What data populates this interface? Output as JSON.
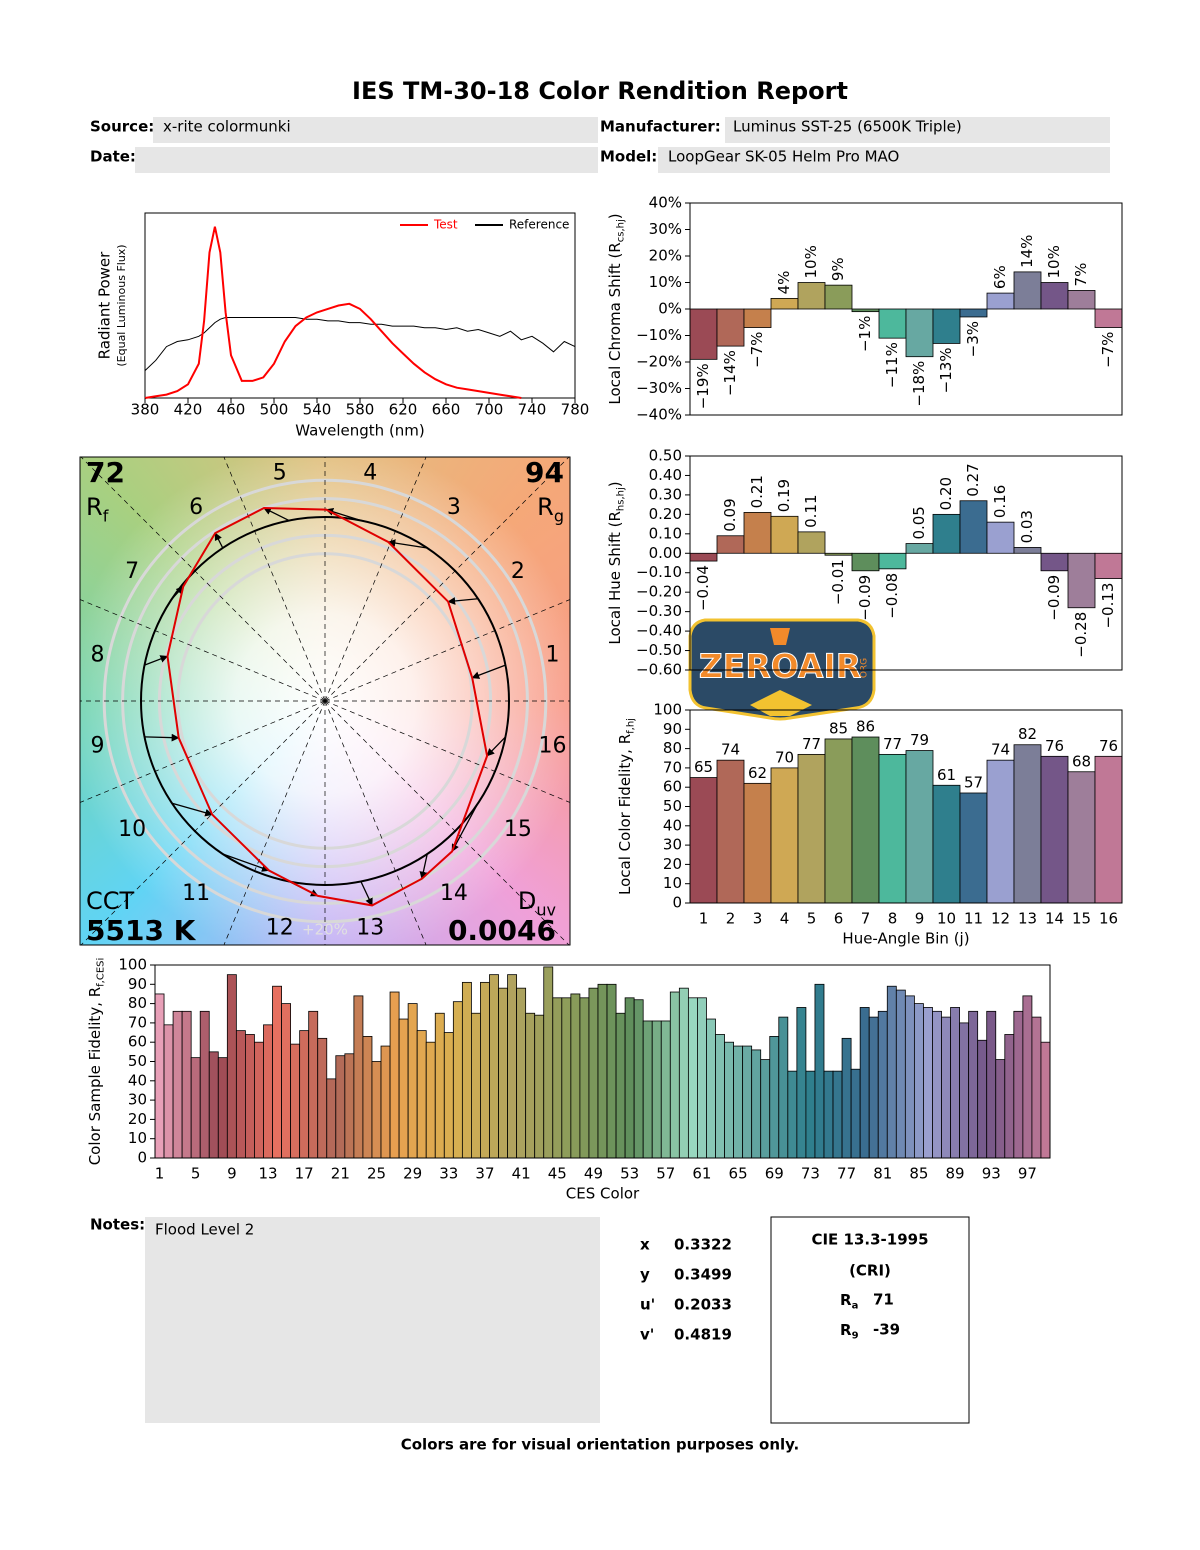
{
  "header": {
    "title": "IES TM-30-18 Color Rendition Report",
    "fields": [
      {
        "label": "Source:",
        "value": "x-rite colormunki"
      },
      {
        "label": "Manufacturer:",
        "value": "Luminus SST-25 (6500K Triple)"
      },
      {
        "label": "Date:"
      },
      {
        "label": "Model:",
        "value": "LoopGear SK-05 Helm Pro MAO"
      }
    ]
  },
  "chart_data": [
    {
      "type": "line",
      "xlabel": "Wavelength (nm)",
      "ylabel": {
        "text": "Radiant Power",
        "note": "(Equal Luminous Flux)"
      },
      "x": [
        380,
        390,
        400,
        410,
        420,
        430,
        435,
        440,
        445,
        450,
        455,
        460,
        470,
        480,
        490,
        500,
        510,
        520,
        530,
        540,
        550,
        560,
        570,
        580,
        590,
        600,
        610,
        620,
        630,
        640,
        650,
        660,
        670,
        680,
        690,
        700,
        710,
        720,
        730,
        740,
        750,
        760,
        770,
        780
      ],
      "series": [
        {
          "name": "Test",
          "color": "#ff0000",
          "values": [
            0,
            0.01,
            0.02,
            0.04,
            0.08,
            0.2,
            0.45,
            0.85,
            1.0,
            0.85,
            0.5,
            0.25,
            0.1,
            0.1,
            0.12,
            0.2,
            0.33,
            0.42,
            0.47,
            0.5,
            0.52,
            0.54,
            0.55,
            0.52,
            0.46,
            0.39,
            0.32,
            0.26,
            0.2,
            0.15,
            0.11,
            0.08,
            0.06,
            0.05,
            0.04,
            0.03,
            0.02,
            0.01,
            0,
            null,
            null,
            null,
            null,
            null
          ]
        },
        {
          "name": "Reference",
          "color": "#000000",
          "values": [
            0.16,
            0.22,
            0.3,
            0.33,
            0.34,
            0.36,
            0.38,
            0.41,
            0.44,
            0.46,
            0.47,
            0.47,
            0.47,
            0.47,
            0.47,
            0.47,
            0.47,
            0.47,
            0.46,
            0.46,
            0.45,
            0.45,
            0.44,
            0.44,
            0.43,
            0.43,
            0.42,
            0.42,
            0.42,
            0.41,
            0.41,
            0.4,
            0.41,
            0.39,
            0.4,
            0.38,
            0.36,
            0.39,
            0.34,
            0.36,
            0.32,
            0.27,
            0.33,
            0.3
          ]
        }
      ],
      "xlim": [
        380,
        780
      ],
      "xticks": [
        380,
        420,
        460,
        500,
        540,
        580,
        620,
        660,
        700,
        740,
        780
      ],
      "ylim": [
        0,
        1.08
      ],
      "legend": "upper right"
    },
    {
      "type": "bar",
      "ylabel": {
        "text": "Local Chroma Shift (R",
        "sub": "cs,hj",
        "after": ")"
      },
      "values": [
        -19,
        -14,
        -7,
        4,
        10,
        9,
        -1,
        -11,
        -18,
        -13,
        -3,
        6,
        14,
        10,
        7,
        -7
      ],
      "value_labels": [
        "−19%",
        "−14%",
        "−7%",
        "4%",
        "10%",
        "9%",
        "−1%",
        "−11%",
        "−18%",
        "−13%",
        "−3%",
        "6%",
        "14%",
        "10%",
        "7%",
        "−7%"
      ],
      "colors": [
        "#9b4a55",
        "#b06858",
        "#c5804c",
        "#cfa854",
        "#b0a35e",
        "#8a9c5a",
        "#5e8e5c",
        "#4db89c",
        "#67a8a2",
        "#2f7f8d",
        "#3b6c90",
        "#9aa0d0",
        "#7c7e98",
        "#745688",
        "#9e7e9a",
        "#c07896"
      ],
      "ylim": [
        -40,
        40
      ],
      "yticks": [
        {
          "value": -40,
          "label": "−40%"
        },
        {
          "value": -30,
          "label": "−30%"
        },
        {
          "value": -20,
          "label": "−20%"
        },
        {
          "value": -10,
          "label": "−10%"
        },
        {
          "value": 0,
          "label": "0%"
        },
        {
          "value": 10,
          "label": "10%"
        },
        {
          "value": 20,
          "label": "20%"
        },
        {
          "value": 30,
          "label": "30%"
        },
        {
          "value": 40,
          "label": "40%"
        }
      ]
    },
    {
      "type": "bar",
      "ylabel": {
        "text": "Local Hue Shift (R",
        "sub": "hs,hj",
        "after": ")"
      },
      "values": [
        -0.04,
        0.09,
        0.21,
        0.19,
        0.11,
        -0.01,
        -0.09,
        -0.08,
        0.05,
        0.2,
        0.27,
        0.16,
        0.03,
        -0.09,
        -0.28,
        -0.13
      ],
      "value_labels": [
        "−0.04",
        "0.09",
        "0.21",
        "0.19",
        "0.11",
        "−0.01",
        "−0.09",
        "−0.08",
        "0.05",
        "0.20",
        "0.27",
        "0.16",
        "0.03",
        "−0.09",
        "−0.28",
        "−0.13"
      ],
      "colors": [
        "#9b4a55",
        "#b06858",
        "#c5804c",
        "#cfa854",
        "#b0a35e",
        "#8a9c5a",
        "#5e8e5c",
        "#4db89c",
        "#67a8a2",
        "#2f7f8d",
        "#3b6c90",
        "#9aa0d0",
        "#7c7e98",
        "#745688",
        "#9e7e9a",
        "#c07896"
      ],
      "ylim": [
        -0.6,
        0.5
      ],
      "yticks": [
        {
          "value": -0.6,
          "label": "−0.60"
        },
        {
          "value": -0.5,
          "label": "−0.50"
        },
        {
          "value": -0.4,
          "label": "−0.40"
        },
        {
          "value": -0.3,
          "label": "−0.30"
        },
        {
          "value": -0.2,
          "label": "−0.20"
        },
        {
          "value": -0.1,
          "label": "−0.10"
        },
        {
          "value": 0,
          "label": "0.00"
        },
        {
          "value": 0.1,
          "label": "0.10"
        },
        {
          "value": 0.2,
          "label": "0.20"
        },
        {
          "value": 0.3,
          "label": "0.30"
        },
        {
          "value": 0.4,
          "label": "0.40"
        },
        {
          "value": 0.5,
          "label": "0.50"
        }
      ]
    },
    {
      "type": "bar",
      "xlabel": "Hue-Angle Bin (j)",
      "ylabel": {
        "text": "Local Color Fidelity, R",
        "sub": "f,hj"
      },
      "categories": [
        1,
        2,
        3,
        4,
        5,
        6,
        7,
        8,
        9,
        10,
        11,
        12,
        13,
        14,
        15,
        16
      ],
      "values": [
        65,
        74,
        62,
        70,
        77,
        85,
        86,
        77,
        79,
        61,
        57,
        74,
        82,
        76,
        68,
        76
      ],
      "data_labels": true,
      "colors": [
        "#9b4a55",
        "#b06858",
        "#c5804c",
        "#cfa854",
        "#b0a35e",
        "#8a9c5a",
        "#5e8e5c",
        "#4db89c",
        "#67a8a2",
        "#2f7f8d",
        "#3b6c90",
        "#9aa0d0",
        "#7c7e98",
        "#745688",
        "#9e7e9a",
        "#c07896"
      ],
      "ylim": [
        0,
        100
      ],
      "yticks": [
        0,
        10,
        20,
        30,
        40,
        50,
        60,
        70,
        80,
        90,
        100
      ]
    },
    {
      "type": "bar",
      "xlabel": "CES Color",
      "ylabel": {
        "text": "Color Sample Fidelity, R",
        "sub": "f,CESi"
      },
      "categories": [
        1,
        null,
        null,
        null,
        5,
        null,
        null,
        null,
        9,
        null,
        null,
        null,
        13,
        null,
        null,
        null,
        17,
        null,
        null,
        null,
        21,
        null,
        null,
        null,
        25,
        null,
        null,
        null,
        29,
        null,
        null,
        null,
        33,
        null,
        null,
        null,
        37,
        null,
        null,
        null,
        41,
        null,
        null,
        null,
        45,
        null,
        null,
        null,
        49,
        null,
        null,
        null,
        53,
        null,
        null,
        null,
        57,
        null,
        null,
        null,
        61,
        null,
        null,
        null,
        65,
        null,
        null,
        null,
        69,
        null,
        null,
        null,
        73,
        null,
        null,
        null,
        77,
        null,
        null,
        null,
        81,
        null,
        null,
        null,
        85,
        null,
        null,
        null,
        89,
        null,
        null,
        null,
        93,
        null,
        null,
        null,
        97,
        null,
        null
      ],
      "values": [
        85,
        69,
        76,
        76,
        52,
        76,
        55,
        52,
        95,
        66,
        64,
        60,
        69,
        89,
        80,
        59,
        66,
        76,
        62,
        41,
        53,
        54,
        84,
        63,
        50,
        58,
        86,
        72,
        80,
        66,
        60,
        75,
        65,
        81,
        91,
        75,
        91,
        95,
        88,
        95,
        88,
        75,
        74,
        99,
        83,
        83,
        85,
        83,
        88,
        90,
        90,
        75,
        83,
        82,
        71,
        71,
        71,
        86,
        88,
        83,
        83,
        72,
        64,
        60,
        58,
        58,
        56,
        51,
        63,
        73,
        45,
        78,
        45,
        90,
        45,
        45,
        62,
        46,
        78,
        73,
        76,
        89,
        87,
        84,
        80,
        78,
        76,
        73,
        78,
        70,
        76,
        61,
        76,
        51,
        64,
        76,
        84,
        73,
        60
      ],
      "color_stops": [
        "#e8a0b8",
        "#9b4a55",
        "#e87060",
        "#b06858",
        "#e8a050",
        "#d8b050",
        "#b0a35e",
        "#8a9c5a",
        "#5e8e5c",
        "#9ad8c0",
        "#67a8a2",
        "#2f7f8d",
        "#3b6c90",
        "#9aa0d0",
        "#745688",
        "#c07896"
      ],
      "ylim": [
        0,
        100
      ],
      "yticks": [
        0,
        10,
        20,
        30,
        40,
        50,
        60,
        70,
        80,
        90,
        100
      ]
    },
    {
      "type": "vector",
      "bin_labels": [
        1,
        2,
        3,
        4,
        5,
        6,
        7,
        8,
        9,
        10,
        11,
        12,
        13,
        14,
        15,
        16
      ],
      "ring_label": "+20%",
      "rf": {
        "value": 72,
        "symbol": "R",
        "sub": "f"
      },
      "rg": {
        "value": 94,
        "symbol": "R",
        "sub": "g"
      },
      "cct": {
        "label": "CCT",
        "value": "5513 K"
      },
      "duv": {
        "symbol": "D",
        "sub": "uv",
        "value": "0.0046"
      }
    }
  ],
  "watermark": {
    "text": "ZEROAIR",
    "suffix": "ORG"
  },
  "notes": {
    "label": "Notes:",
    "text": "Flood Level 2"
  },
  "chromaticity": [
    {
      "label": "x",
      "value": 0.3322
    },
    {
      "label": "y",
      "value": 0.3499
    },
    {
      "label": "u'",
      "value": 0.2033
    },
    {
      "label": "v'",
      "value": 0.4819
    }
  ],
  "cri": {
    "title": "CIE 13.3-1995",
    "subtitle": "(CRI)",
    "ra": {
      "symbol": "R",
      "sub": "a",
      "value": 71
    },
    "r9": {
      "symbol": "R",
      "sub": "9",
      "value": -39
    }
  },
  "footer": "Colors are for visual orientation purposes only."
}
